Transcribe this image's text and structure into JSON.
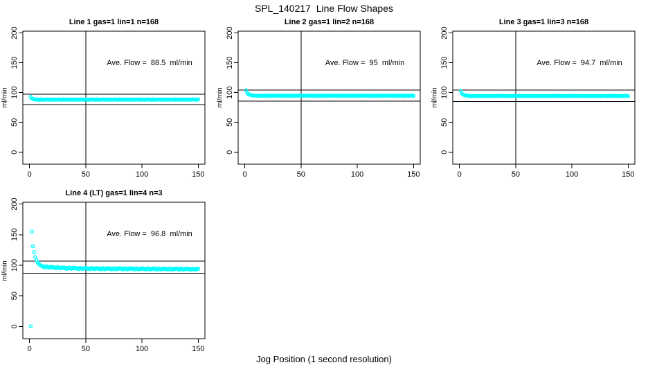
{
  "figure": {
    "title": "SPL_140217  Line Flow Shapes",
    "xlabel": "Jog Position (1 second resolution)",
    "colors": {
      "points": "#00FFFF",
      "axis": "#000000",
      "background": "#FFFFFF"
    }
  },
  "chart_data": [
    {
      "type": "scatter",
      "title": "Line 1 gas=1 lin=1 n=168",
      "annotation": "Ave. Flow =  88.5  ml/min",
      "ave_flow": 88.5,
      "ylabel": "ml/min",
      "x_ticks": [
        0,
        50,
        100,
        150
      ],
      "y_ticks": [
        0,
        50,
        100,
        150,
        200
      ],
      "xlim": [
        -6,
        156
      ],
      "ylim": [
        -20,
        203
      ],
      "vline_x": 50,
      "hlines": [
        97.4,
        79.7
      ],
      "x_start": 1,
      "x_step": 1,
      "y": [
        93,
        90.3,
        89.2,
        88.7,
        88.5,
        88.6,
        88.1,
        88.4,
        87.9,
        88.7,
        88.3,
        88,
        88.5,
        88.2,
        88.6,
        88.6,
        88.1,
        88.4,
        87.9,
        88.7,
        88.3,
        88,
        88.5,
        88.2,
        88.6,
        88.6,
        88.1,
        88.4,
        87.9,
        88.7,
        88.3,
        88,
        88.5,
        88.2,
        88.6,
        88.6,
        88.1,
        88.4,
        87.9,
        88.7,
        88.3,
        88,
        88.5,
        88.2,
        88.6,
        88.6,
        88.1,
        88.4,
        87.9,
        88.7,
        88.3,
        88,
        88.5,
        88.2,
        88.6,
        88.6,
        88.1,
        88.4,
        87.9,
        88.7,
        88.3,
        88,
        88.5,
        88.2,
        88.6,
        88.6,
        88.1,
        88.4,
        87.9,
        88.7,
        88.3,
        88,
        88.5,
        88.2,
        88.6,
        88.6,
        88.1,
        88.4,
        87.9,
        88.7,
        88.3,
        88,
        88.5,
        88.2,
        88.6,
        88.6,
        88.1,
        88.4,
        87.9,
        88.7,
        88.3,
        88,
        88.5,
        88.2,
        88.6,
        88.6,
        88.1,
        88.4,
        87.9,
        88.7,
        88.3,
        88,
        88.5,
        88.2,
        88.6,
        88.6,
        88.1,
        88.4,
        87.9,
        88.7,
        88.3,
        88,
        88.5,
        88.2,
        88.6,
        88.6,
        88.1,
        88.4,
        87.9,
        88.7,
        88.3,
        88,
        88.5,
        88.2,
        88.6,
        88.6,
        88.1,
        88.4,
        87.9,
        88.7,
        88.3,
        88,
        88.5,
        88.2,
        88.6,
        88.6,
        88.1,
        88.4,
        87.9,
        88.7,
        88.3,
        88,
        88.5,
        88.2,
        88.6,
        88.6,
        88.1,
        88.4,
        87.9,
        88.7
      ]
    },
    {
      "type": "scatter",
      "title": "Line 2 gas=1 lin=2 n=168",
      "annotation": "Ave. Flow =  95  ml/min",
      "ave_flow": 95,
      "ylabel": "ml/min",
      "x_ticks": [
        0,
        50,
        100,
        150
      ],
      "y_ticks": [
        0,
        50,
        100,
        150,
        200
      ],
      "xlim": [
        -6,
        156
      ],
      "ylim": [
        -20,
        203
      ],
      "vline_x": 50,
      "hlines": [
        104.5,
        85.5
      ],
      "x_start": 1,
      "x_step": 1,
      "y": [
        104,
        99.6,
        97.6,
        96.6,
        95.9,
        95.5,
        95.2,
        95,
        94.9,
        94.5,
        94.8,
        94.3,
        95.1,
        94.7,
        94.4,
        94.9,
        94.6,
        95,
        94.9,
        94.5,
        94.8,
        94.3,
        95.1,
        94.7,
        94.4,
        94.9,
        94.6,
        95,
        94.9,
        94.5,
        94.8,
        94.3,
        95.1,
        94.7,
        94.4,
        94.9,
        94.6,
        95,
        94.9,
        94.5,
        94.8,
        94.3,
        95.1,
        94.7,
        94.4,
        94.9,
        94.6,
        95,
        94.9,
        94.5,
        94.8,
        94.3,
        95.1,
        94.7,
        94.4,
        94.9,
        94.6,
        95,
        94.9,
        94.5,
        94.8,
        94.3,
        95.1,
        94.7,
        94.4,
        94.9,
        94.6,
        95,
        94.9,
        94.5,
        94.8,
        94.3,
        95.1,
        94.7,
        94.4,
        94.9,
        94.6,
        95,
        94.9,
        94.5,
        94.8,
        94.3,
        95.1,
        94.7,
        94.4,
        94.9,
        94.6,
        95,
        94.9,
        94.5,
        94.8,
        94.3,
        95.1,
        94.7,
        94.4,
        94.9,
        94.6,
        95,
        94.9,
        94.5,
        94.8,
        94.3,
        95.1,
        94.7,
        94.4,
        94.9,
        94.6,
        95,
        94.9,
        94.5,
        94.8,
        94.3,
        95.1,
        94.7,
        94.4,
        94.9,
        94.6,
        95,
        94.9,
        94.5,
        94.8,
        94.3,
        95.1,
        94.7,
        94.4,
        94.9,
        94.6,
        95,
        94.9,
        94.5,
        94.8,
        94.3,
        95.1,
        94.7,
        94.4,
        94.9,
        94.6,
        95,
        94.9,
        94.5,
        94.8,
        94.3,
        95.1,
        94.7,
        94.4,
        94.9,
        94.6,
        95,
        94.9,
        94.5
      ]
    },
    {
      "type": "scatter",
      "title": "Line 3 gas=1 lin=3 n=168",
      "annotation": "Ave. Flow =  94.7  ml/min",
      "ave_flow": 94.7,
      "ylabel": "ml/min",
      "x_ticks": [
        0,
        50,
        100,
        150
      ],
      "y_ticks": [
        0,
        50,
        100,
        150,
        200
      ],
      "xlim": [
        -6,
        156
      ],
      "ylim": [
        -20,
        203
      ],
      "vline_x": 50,
      "hlines": [
        104.2,
        85.2
      ],
      "x_start": 1,
      "x_step": 1,
      "y": [
        103,
        99,
        97,
        96,
        95.4,
        95,
        94.7,
        94.5,
        94.5,
        94.1,
        94.4,
        93.9,
        94.7,
        94.3,
        94,
        94.5,
        94.2,
        94.6,
        94.5,
        94.1,
        94.4,
        93.9,
        94.7,
        94.3,
        94,
        94.5,
        94.2,
        94.6,
        94.5,
        94.1,
        94.4,
        93.9,
        94.7,
        94.3,
        94,
        94.5,
        94.2,
        94.6,
        94.5,
        94.1,
        94.4,
        93.9,
        94.7,
        94.3,
        94,
        94.5,
        94.2,
        94.6,
        94.5,
        94.1,
        94.4,
        93.9,
        94.7,
        94.3,
        94,
        94.5,
        94.2,
        94.6,
        94.5,
        94.1,
        94.4,
        93.9,
        94.7,
        94.3,
        94,
        94.5,
        94.2,
        94.6,
        94.5,
        94.1,
        94.4,
        93.9,
        94.7,
        94.3,
        94,
        94.5,
        94.2,
        94.6,
        94.5,
        94.1,
        94.4,
        93.9,
        94.7,
        94.3,
        94,
        94.5,
        94.2,
        94.6,
        94.5,
        94.1,
        94.4,
        93.9,
        94.7,
        94.3,
        94,
        94.5,
        94.2,
        94.6,
        94.5,
        94.1,
        94.4,
        93.9,
        94.7,
        94.3,
        94,
        94.5,
        94.2,
        94.6,
        94.5,
        94.1,
        94.4,
        93.9,
        94.7,
        94.3,
        94,
        94.5,
        94.2,
        94.6,
        94.5,
        94.1,
        94.4,
        93.9,
        94.7,
        94.3,
        94,
        94.5,
        94.2,
        94.6,
        94.5,
        94.1,
        94.4,
        93.9,
        94.7,
        94.3,
        94,
        94.5,
        94.2,
        94.6,
        94.5,
        94.1,
        94.4,
        93.9,
        94.7,
        94.3,
        94,
        94.5,
        94.2,
        94.6,
        94.5,
        94.1
      ]
    },
    {
      "type": "scatter",
      "title": "Line 4 (LT) gas=1 lin=4 n=3",
      "annotation": "Ave. Flow =  96.8  ml/min",
      "ave_flow": 96.8,
      "ylabel": "ml/min",
      "x_ticks": [
        0,
        50,
        100,
        150
      ],
      "y_ticks": [
        0,
        50,
        100,
        150,
        200
      ],
      "xlim": [
        -6,
        156
      ],
      "ylim": [
        -20,
        203
      ],
      "vline_x": 50,
      "hlines": [
        106.5,
        87.1
      ],
      "x_start": 1,
      "x_step": 1,
      "y": [
        0.2,
        155,
        131,
        121.5,
        113.5,
        108.5,
        105,
        102.5,
        100.8,
        99.6,
        98.9,
        97.1,
        97.9,
        96.3,
        98.4,
        97.1,
        96,
        97.4,
        96.3,
        97.5,
        97.3,
        95.6,
        96.5,
        95,
        97.2,
        95.9,
        94.9,
        96.3,
        95.3,
        96.5,
        96.3,
        94.7,
        95.6,
        94.2,
        96.4,
        95.2,
        94.2,
        95.7,
        94.7,
        96,
        95.8,
        94.2,
        95.2,
        93.7,
        96,
        94.8,
        93.9,
        95.3,
        94.4,
        95.7,
        95.5,
        93.9,
        94.9,
        93.5,
        95.7,
        94.5,
        93.7,
        95.1,
        94.2,
        95.5,
        95.3,
        93.7,
        94.7,
        93.3,
        95.5,
        94.3,
        93.5,
        94.9,
        94,
        95.3,
        95.2,
        93.6,
        94.6,
        93.2,
        95.4,
        94.2,
        93.4,
        94.8,
        93.9,
        95.2,
        95.1,
        93.5,
        94.5,
        93.1,
        95.3,
        94.1,
        93.3,
        94.7,
        93.8,
        95.1,
        95,
        93.4,
        94.4,
        93,
        95.2,
        94,
        93.2,
        94.6,
        93.7,
        95,
        94.9,
        93.3,
        94.3,
        92.9,
        95.1,
        93.9,
        93.1,
        94.5,
        93.6,
        94.9,
        94.8,
        93.2,
        94.2,
        92.8,
        95,
        93.8,
        93,
        94.4,
        93.5,
        94.8,
        94.7,
        93.1,
        94.1,
        92.7,
        94.9,
        93.7,
        92.9,
        94.3,
        93.4,
        94.7,
        94.6,
        93,
        94,
        92.6,
        94.8,
        93.6,
        92.8,
        94.2,
        93.3,
        94.6,
        94.5,
        92.9,
        93.9,
        92.5,
        94.7,
        93.5,
        92.7,
        94.1,
        93.2,
        94.5
      ]
    }
  ]
}
